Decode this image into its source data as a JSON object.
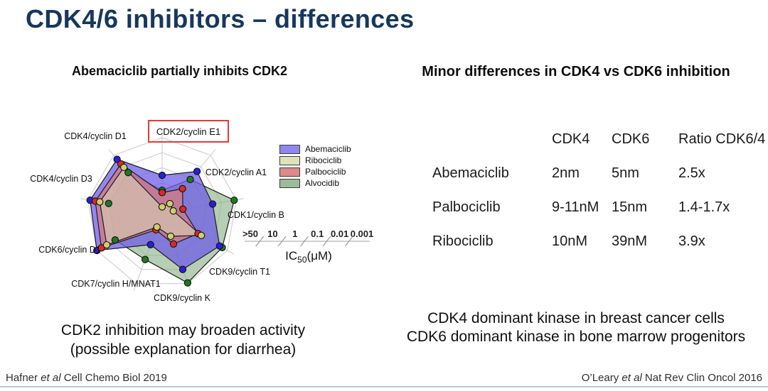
{
  "slide": {
    "title": "CDK4/6 inhibitors – differences",
    "colors": {
      "title": "#17375d",
      "highlight_box": "#e23b3b",
      "bottom_rule": "#b9c7da",
      "grid": "#c9c9c9"
    }
  },
  "left_panel": {
    "subtitle": "Abemaciclib partially inhibits CDK2",
    "conclusion": [
      "CDK2 inhibition may broaden activity",
      "(possible explanation for diarrhea)"
    ],
    "citation": {
      "prefix": "Hafner ",
      "italic": "et al",
      "suffix": " Cell Chemo Biol 2019"
    }
  },
  "right_panel": {
    "subtitle": "Minor differences in CDK4 vs CDK6 inhibition",
    "table": {
      "headers": [
        "",
        "CDK4",
        "CDK6",
        "Ratio CDK6/4"
      ],
      "rows": [
        [
          "Abemaciclib",
          "2nm",
          "5nm",
          "2.5x"
        ],
        [
          "Palbociclib",
          "9-11nM",
          "15nm",
          "1.4-1.7x"
        ],
        [
          "Ribociclib",
          "10nM",
          "39nM",
          "3.9x"
        ]
      ]
    },
    "conclusion": [
      "CDK4 dominant kinase in breast cancer cells",
      "CDK6 dominant kinase in bone marrow progenitors"
    ],
    "citation": {
      "prefix": "O’Leary ",
      "italic": "et al",
      "suffix": " Nat Rev Clin Oncol 2016"
    }
  },
  "chart_data": {
    "type": "radar",
    "title": "Abemaciclib partially inhibits CDK2",
    "axes": [
      "CDK2/cyclin E1",
      "CDK2/cyclin A1",
      "CDK1/cyclin B",
      "CDK9/cyclin T1",
      "CDK9/cyclin K",
      "CDK7/cyclin H/MNAT1",
      "CDK6/cyclin D1",
      "CDK4/cyclin D3",
      "CDK4/cyclin D1"
    ],
    "highlighted_axis": "CDK2/cyclin E1",
    "rings": 5,
    "scale": {
      "tick_labels": [
        ">50",
        "10",
        "1",
        "0.1",
        "0.01",
        "0.001"
      ],
      "label_prefix": "IC",
      "label_sub": "50",
      "label_suffix": "(μM)",
      "note": "log radial scale: center = >50 μM, outer edge = 0.001 μM"
    },
    "legend_order": [
      "Abemaciclib",
      "Ribociclib",
      "Palbociclib",
      "Alvocidib"
    ],
    "draw_order": [
      "Alvocidib",
      "Abemaciclib",
      "Palbociclib",
      "Ribociclib"
    ],
    "series": [
      {
        "name": "Abemaciclib",
        "legend_color": "#9186ee",
        "fill_color": "#6f5de6",
        "fill_opacity": 0.75,
        "dot_color": "#2a1fd8",
        "radial_fraction": [
          0.5,
          0.72,
          0.68,
          0.88,
          0.8,
          0.45,
          1.0,
          0.97,
          0.93
        ],
        "est_ic50_uM": [
          0.3,
          0.025,
          0.04,
          0.004,
          0.01,
          0.6,
          0.001,
          0.0015,
          0.002
        ]
      },
      {
        "name": "Ribociclib",
        "legend_color": "#dde3b8",
        "fill_color": "#dde3b8",
        "fill_opacity": 0.5,
        "dot_color": "#cdd06b",
        "radial_fraction": [
          0.08,
          0.16,
          0.15,
          0.6,
          0.33,
          0.2,
          0.85,
          0.84,
          0.79
        ],
        "est_ic50_uM": [
          40,
          16,
          18,
          0.1,
          2.2,
          10,
          0.006,
          0.006,
          0.011
        ]
      },
      {
        "name": "Palbociclib",
        "legend_color": "#dd8a8a",
        "fill_color": "#d97b7b",
        "fill_opacity": 0.72,
        "dot_color": "#d92b21",
        "radial_fraction": [
          0.27,
          0.42,
          0.28,
          0.55,
          0.44,
          0.24,
          0.93,
          0.9,
          0.85
        ],
        "est_ic50_uM": [
          4.5,
          0.8,
          4.0,
          0.18,
          0.6,
          6.3,
          0.002,
          0.003,
          0.006
        ]
      },
      {
        "name": "Alvocidib",
        "legend_color": "#9cbb97",
        "fill_color": "#86ad80",
        "fill_opacity": 0.6,
        "dot_color": "#1f7a1f",
        "radial_fraction": [
          0.3,
          0.58,
          0.97,
          0.92,
          0.99,
          0.66,
          0.72,
          0.72,
          0.7
        ],
        "est_ic50_uM": [
          3.2,
          0.13,
          0.0014,
          0.0025,
          0.001,
          0.05,
          0.025,
          0.025,
          0.03
        ]
      }
    ]
  }
}
